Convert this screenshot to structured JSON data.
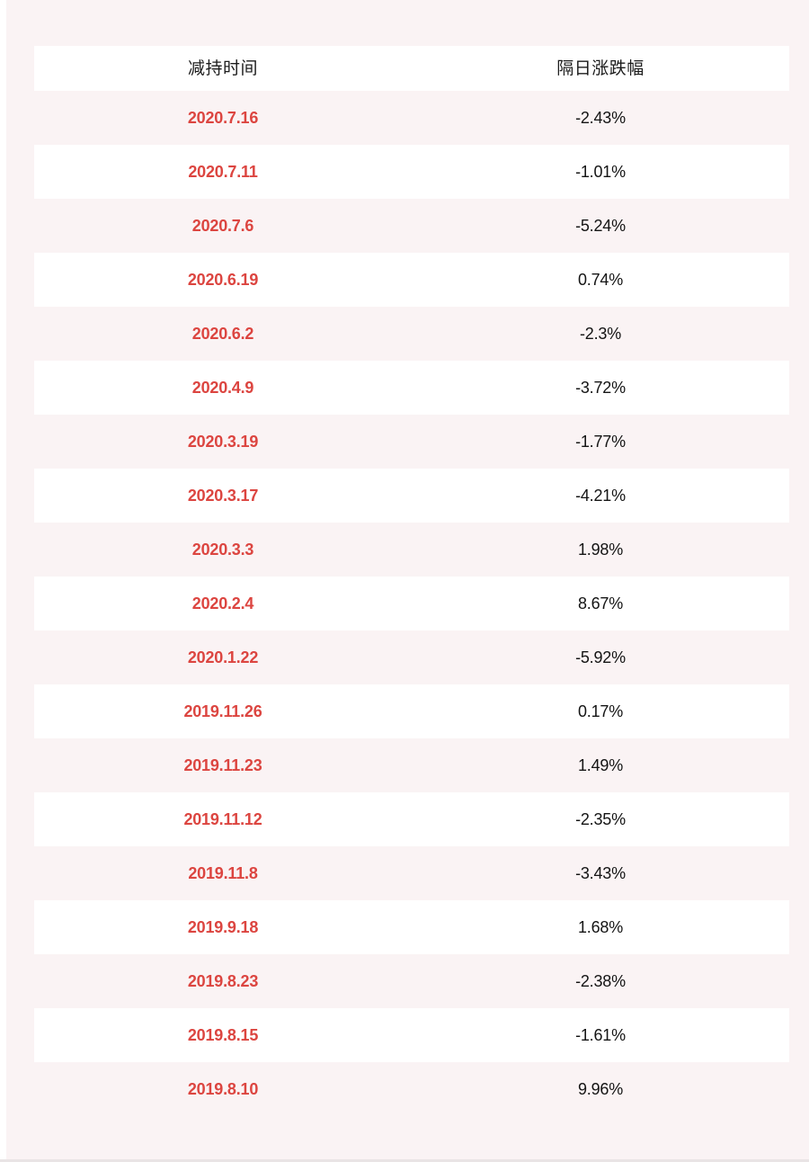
{
  "page": {
    "background_color": "#faf3f4",
    "left_strip_color": "#ffffff",
    "bottom_strip_color": "#e9e4e5"
  },
  "colors": {
    "date_red": "#dc4540",
    "value_black": "#141414",
    "header_black": "#1b1b1b",
    "row_white": "#ffffff",
    "row_pink": "#faf3f4"
  },
  "table": {
    "headers": [
      {
        "label": "减持时间"
      },
      {
        "label": "隔日涨跌幅"
      }
    ],
    "rows": [
      {
        "date": "2020.7.16",
        "change": "-2.43%"
      },
      {
        "date": "2020.7.11",
        "change": "-1.01%"
      },
      {
        "date": "2020.7.6",
        "change": "-5.24%"
      },
      {
        "date": "2020.6.19",
        "change": "0.74%"
      },
      {
        "date": "2020.6.2",
        "change": "-2.3%"
      },
      {
        "date": "2020.4.9",
        "change": "-3.72%"
      },
      {
        "date": "2020.3.19",
        "change": "-1.77%"
      },
      {
        "date": "2020.3.17",
        "change": "-4.21%"
      },
      {
        "date": "2020.3.3",
        "change": "1.98%"
      },
      {
        "date": "2020.2.4",
        "change": "8.67%"
      },
      {
        "date": "2020.1.22",
        "change": "-5.92%"
      },
      {
        "date": "2019.11.26",
        "change": "0.17%"
      },
      {
        "date": "2019.11.23",
        "change": "1.49%"
      },
      {
        "date": "2019.11.12",
        "change": "-2.35%"
      },
      {
        "date": "2019.11.8",
        "change": "-3.43%"
      },
      {
        "date": "2019.9.18",
        "change": "1.68%"
      },
      {
        "date": "2019.8.23",
        "change": "-2.38%"
      },
      {
        "date": "2019.8.15",
        "change": "-1.61%"
      },
      {
        "date": "2019.8.10",
        "change": "9.96%"
      }
    ]
  },
  "chart_data": {
    "type": "table",
    "title": "",
    "columns": [
      "减持时间",
      "隔日涨跌幅"
    ],
    "categories": [
      "2020.7.16",
      "2020.7.11",
      "2020.7.6",
      "2020.6.19",
      "2020.6.2",
      "2020.4.9",
      "2020.3.19",
      "2020.3.17",
      "2020.3.3",
      "2020.2.4",
      "2020.1.22",
      "2019.11.26",
      "2019.11.23",
      "2019.11.12",
      "2019.11.8",
      "2019.9.18",
      "2019.8.23",
      "2019.8.15",
      "2019.8.10"
    ],
    "values_percent": [
      -2.43,
      -1.01,
      -5.24,
      0.74,
      -2.3,
      -3.72,
      -1.77,
      -4.21,
      1.98,
      8.67,
      -5.92,
      0.17,
      1.49,
      -2.35,
      -3.43,
      1.68,
      -2.38,
      -1.61,
      9.96
    ],
    "layout": {
      "header_background": "#ffffff",
      "alternating_rows": [
        "#faf3f4",
        "#ffffff"
      ],
      "grid": false
    }
  }
}
